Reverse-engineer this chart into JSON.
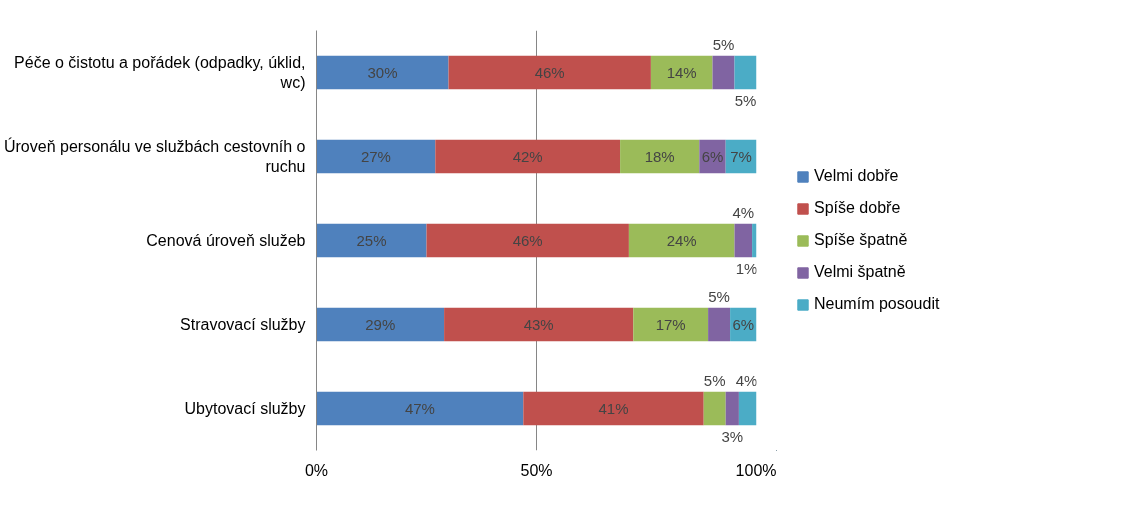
{
  "chart_data": {
    "type": "bar",
    "orientation": "horizontal",
    "stacked": true,
    "categories": [
      "Péče o čistotu a pořádek (odpadky, úklid, wc)",
      "Úroveň personálu ve službách cestovníh o ruchu",
      "Cenová úroveň služeb",
      "Stravovací služby",
      "Ubytovací služby"
    ],
    "series": [
      {
        "name": "Velmi dobře",
        "color": "#4f81bd",
        "values": [
          30,
          27,
          25,
          29,
          47
        ],
        "value_labels": [
          "30%",
          "27%",
          "25%",
          "29%",
          "47%"
        ]
      },
      {
        "name": "Spíše dobře",
        "color": "#c0504d",
        "values": [
          46,
          42,
          46,
          43,
          41
        ],
        "value_labels": [
          "46%",
          "42%",
          "46%",
          "43%",
          "41%"
        ]
      },
      {
        "name": "Spíše špatně",
        "color": "#9bbb59",
        "values": [
          14,
          18,
          24,
          17,
          5
        ],
        "value_labels": [
          "14%",
          "18%",
          "24%",
          "17%",
          "5%"
        ]
      },
      {
        "name": "Velmi špatně",
        "color": "#8064a2",
        "values": [
          5,
          6,
          4,
          5,
          3
        ],
        "value_labels": [
          "5%",
          "6%",
          "4%",
          "5%",
          "3%"
        ]
      },
      {
        "name": "Neumím posoudit",
        "color": "#4bacc6",
        "values": [
          5,
          7,
          1,
          6,
          4
        ],
        "value_labels": [
          "5%",
          "7%",
          "1%",
          "6%",
          "4%"
        ]
      }
    ],
    "xlim": [
      0,
      100
    ],
    "xticks": [
      {
        "value": 0,
        "label": "0%"
      },
      {
        "value": 50,
        "label": "50%"
      },
      {
        "value": 100,
        "label": "100%"
      }
    ],
    "grid": "x",
    "legend": "right"
  }
}
